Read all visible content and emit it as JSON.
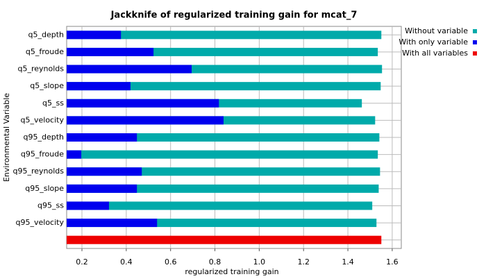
{
  "chart_data": {
    "type": "bar",
    "orientation": "horizontal",
    "title": "Jackknife of regularized training gain for mcat_7",
    "x_label": "regularized training gain",
    "y_label": "Environmental Variable",
    "categories": [
      "q5_depth",
      "q5_froude",
      "q5_reynolds",
      "q5_slope",
      "q5_ss",
      "q5_velocity",
      "q95_depth",
      "q95_froude",
      "q95_reynolds",
      "q95_slope",
      "q95_ss",
      "q95_velocity",
      null
    ],
    "series": [
      {
        "name": "Without variable",
        "color": "#00aaaa",
        "values": [
          1.551,
          1.535,
          1.554,
          1.548,
          1.463,
          1.523,
          1.542,
          1.535,
          1.545,
          1.539,
          1.51,
          1.529,
          null
        ]
      },
      {
        "name": "With only variable",
        "color": "#0000ee",
        "values": [
          0.376,
          0.523,
          0.695,
          0.419,
          0.818,
          0.839,
          0.448,
          0.197,
          0.47,
          0.448,
          0.322,
          0.539,
          null
        ]
      },
      {
        "name": "With all variables",
        "color": "#ee0000",
        "values": [
          null,
          null,
          null,
          null,
          null,
          null,
          null,
          null,
          null,
          null,
          null,
          null,
          1.551
        ]
      }
    ],
    "xlim": [
      0.131,
      1.641
    ],
    "xticks": [
      0.2,
      0.4,
      0.6,
      0.8,
      {
        "value": 1,
        "label": "1.0"
      },
      1.2,
      1.4,
      1.6
    ],
    "grid": true,
    "legend": "right"
  }
}
